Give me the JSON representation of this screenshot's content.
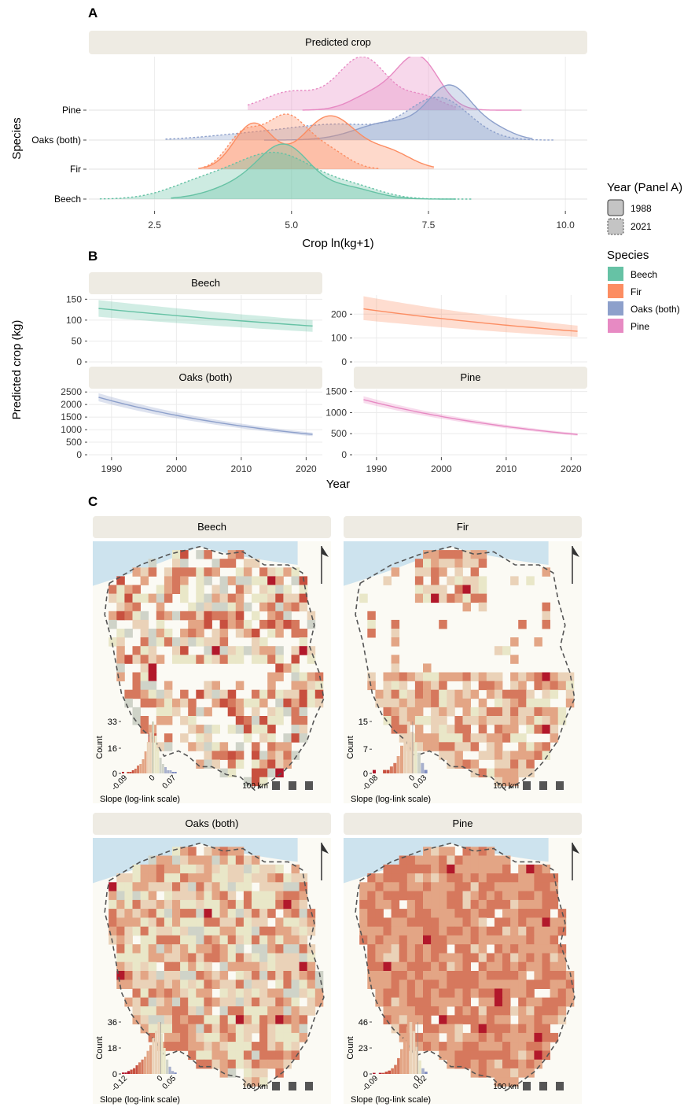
{
  "panels": {
    "a": "A",
    "b": "B",
    "c": "C"
  },
  "legend": {
    "year_title": "Year (Panel A)",
    "year_items": [
      "1988",
      "2021"
    ],
    "species_title": "Species",
    "species_items": [
      "Beech",
      "Fir",
      "Oaks (both)",
      "Pine"
    ],
    "colors": [
      "#66c2a5",
      "#fc8d62",
      "#8da0cb",
      "#e78ac3"
    ]
  },
  "chart_data": [
    {
      "id": "panel-a",
      "type": "area",
      "title": "Predicted crop",
      "xlabel": "Crop ln(kg+1)",
      "ylabel": "Species",
      "xlim": [
        1.3,
        10.4
      ],
      "xticks": [
        "2.5",
        "5.0",
        "7.5",
        "10.0"
      ],
      "xtick_values": [
        2.5,
        5.0,
        7.5,
        10.0
      ],
      "categories": [
        "Beech",
        "Fir",
        "Oaks (both)",
        "Pine"
      ],
      "series": [
        {
          "name": "Beech",
          "year": "1988",
          "range": [
            2.8,
            8.0
          ],
          "components": [
            {
              "m": 4.9,
              "s": 0.45,
              "w": 1.0
            },
            {
              "m": 4.2,
              "s": 0.6,
              "w": 0.35
            },
            {
              "m": 6.0,
              "s": 0.5,
              "w": 0.25
            }
          ]
        },
        {
          "name": "Beech",
          "year": "2021",
          "range": [
            1.5,
            8.3
          ],
          "components": [
            {
              "m": 4.7,
              "s": 0.75,
              "w": 1.0
            },
            {
              "m": 3.3,
              "s": 0.6,
              "w": 0.3
            },
            {
              "m": 6.2,
              "s": 0.5,
              "w": 0.2
            }
          ]
        },
        {
          "name": "Fir",
          "year": "1988",
          "range": [
            3.3,
            7.6
          ],
          "components": [
            {
              "m": 4.3,
              "s": 0.35,
              "w": 0.85
            },
            {
              "m": 5.7,
              "s": 0.5,
              "w": 1.0
            },
            {
              "m": 6.8,
              "s": 0.4,
              "w": 0.3
            }
          ]
        },
        {
          "name": "Fir",
          "year": "2021",
          "range": [
            3.4,
            6.6
          ],
          "components": [
            {
              "m": 4.9,
              "s": 0.4,
              "w": 1.0
            },
            {
              "m": 4.1,
              "s": 0.3,
              "w": 0.6
            },
            {
              "m": 5.7,
              "s": 0.35,
              "w": 0.3
            }
          ]
        },
        {
          "name": "Oaks (both)",
          "year": "1988",
          "range": [
            4.5,
            9.4
          ],
          "components": [
            {
              "m": 7.9,
              "s": 0.4,
              "w": 1.0
            },
            {
              "m": 6.8,
              "s": 0.6,
              "w": 0.35
            },
            {
              "m": 8.7,
              "s": 0.35,
              "w": 0.2
            }
          ]
        },
        {
          "name": "Oaks (both)",
          "year": "2021",
          "range": [
            2.7,
            9.8
          ],
          "components": [
            {
              "m": 7.7,
              "s": 0.55,
              "w": 0.8
            },
            {
              "m": 5.9,
              "s": 0.9,
              "w": 0.3
            },
            {
              "m": 4.2,
              "s": 0.8,
              "w": 0.1
            }
          ]
        },
        {
          "name": "Pine",
          "year": "1988",
          "range": [
            5.2,
            9.2
          ],
          "components": [
            {
              "m": 7.3,
              "s": 0.38,
              "w": 1.0
            },
            {
              "m": 6.5,
              "s": 0.4,
              "w": 0.3
            }
          ]
        },
        {
          "name": "Pine",
          "year": "2021",
          "range": [
            4.2,
            8.0
          ],
          "components": [
            {
              "m": 6.3,
              "s": 0.45,
              "w": 1.0
            },
            {
              "m": 5.0,
              "s": 0.5,
              "w": 0.35
            },
            {
              "m": 7.4,
              "s": 0.35,
              "w": 0.25
            }
          ]
        }
      ]
    },
    {
      "id": "panel-b",
      "type": "line",
      "xlabel": "Year",
      "ylabel": "Predicted crop (kg)",
      "xlim": [
        1986.5,
        2022.5
      ],
      "xticks": [
        1990,
        2000,
        2010,
        2020
      ],
      "series": [
        {
          "name": "Beech",
          "x": [
            1988,
            2021
          ],
          "start": 128,
          "end": 86,
          "lo": [
            108,
            72
          ],
          "hi": [
            148,
            100
          ],
          "ylim": [
            0,
            160
          ],
          "yticks": [
            0,
            50,
            100,
            150
          ]
        },
        {
          "name": "Fir",
          "x": [
            1988,
            2021
          ],
          "start": 222,
          "end": 128,
          "lo": [
            175,
            105
          ],
          "hi": [
            275,
            152
          ],
          "ylim": [
            0,
            280
          ],
          "yticks": [
            0,
            100,
            200
          ]
        },
        {
          "name": "Oaks (both)",
          "x": [
            1988,
            2021
          ],
          "start": 2290,
          "end": 810,
          "lo": [
            2130,
            740
          ],
          "hi": [
            2450,
            880
          ],
          "ylim": [
            0,
            2600
          ],
          "yticks": [
            0,
            500,
            1000,
            1500,
            2000,
            2500
          ]
        },
        {
          "name": "Pine",
          "x": [
            1988,
            2021
          ],
          "start": 1310,
          "end": 480,
          "lo": [
            1230,
            450
          ],
          "hi": [
            1390,
            510
          ],
          "ylim": [
            0,
            1550
          ],
          "yticks": [
            0,
            500,
            1000,
            1500
          ]
        }
      ]
    },
    {
      "id": "panel-c",
      "type": "heatmap",
      "xlabel": "Slope (log-link scale)",
      "ylabel": "Count",
      "scale_label": "100 km",
      "maps": [
        {
          "name": "Beech",
          "yticks": [
            "0",
            "16",
            "33"
          ],
          "ymax": 33,
          "xticks": [
            "-0.09",
            "0",
            "0.07"
          ],
          "xrange": [
            -0.09,
            0.07
          ],
          "counts": [
            1,
            0,
            1,
            1,
            2,
            3,
            5,
            6,
            9,
            14,
            20,
            26,
            33,
            24,
            16,
            10,
            6,
            4,
            2,
            2,
            1,
            1
          ]
        },
        {
          "name": "Fir",
          "yticks": [
            "0",
            "7",
            "15"
          ],
          "ymax": 15,
          "xticks": [
            "-0.08",
            "0",
            "0.03"
          ],
          "xrange": [
            -0.08,
            0.03
          ],
          "counts": [
            1,
            0,
            0,
            1,
            1,
            2,
            3,
            5,
            8,
            11,
            15,
            12,
            9,
            6,
            3,
            1
          ]
        },
        {
          "name": "Oaks (both)",
          "yticks": [
            "0",
            "18",
            "36"
          ],
          "ymax": 36,
          "xticks": [
            "-0.12",
            "0",
            "0.05"
          ],
          "xrange": [
            -0.12,
            0.05
          ],
          "counts": [
            1,
            1,
            2,
            3,
            4,
            6,
            8,
            10,
            12,
            16,
            20,
            25,
            30,
            36,
            28,
            18,
            10,
            5,
            2,
            1
          ]
        },
        {
          "name": "Pine",
          "yticks": [
            "0",
            "23",
            "46"
          ],
          "ymax": 46,
          "xticks": [
            "-0.09",
            "0",
            "0.02"
          ],
          "xrange": [
            -0.09,
            0.02
          ],
          "counts": [
            1,
            0,
            1,
            1,
            2,
            3,
            5,
            8,
            14,
            22,
            32,
            42,
            46,
            38,
            24,
            12,
            5,
            2
          ]
        }
      ]
    }
  ]
}
